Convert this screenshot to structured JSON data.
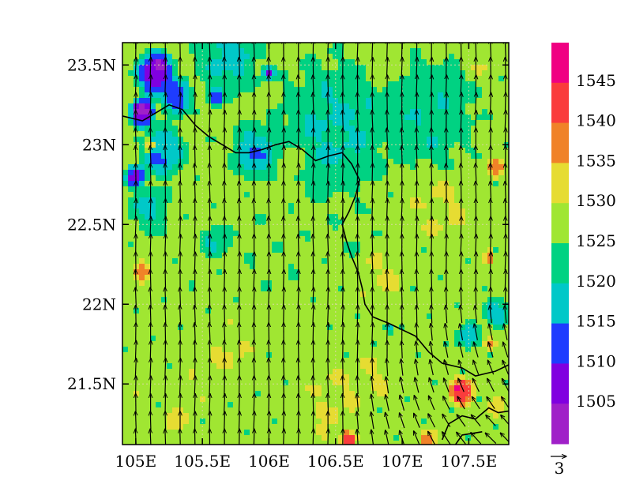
{
  "chart_data": {
    "type": "heatmap",
    "title": "",
    "xlabel": "",
    "ylabel": "",
    "x_range": [
      104.9,
      107.8
    ],
    "y_range": [
      21.12,
      23.64
    ],
    "x_ticks": [
      {
        "value": 105.0,
        "label": "105E"
      },
      {
        "value": 105.5,
        "label": "105.5E"
      },
      {
        "value": 106.0,
        "label": "106E"
      },
      {
        "value": 106.5,
        "label": "106.5E"
      },
      {
        "value": 107.0,
        "label": "107E"
      },
      {
        "value": 107.5,
        "label": "107.5E"
      }
    ],
    "y_ticks": [
      {
        "value": 21.5,
        "label": "21.5N"
      },
      {
        "value": 22.0,
        "label": "22N"
      },
      {
        "value": 22.5,
        "label": "22.5N"
      },
      {
        "value": 23.0,
        "label": "23N"
      },
      {
        "value": 23.5,
        "label": "23.5N"
      }
    ],
    "grid": true,
    "colorbar": {
      "position": "right",
      "levels": [
        {
          "label": "",
          "color": "#a020c8"
        },
        {
          "label": "1505",
          "color": "#8000e0"
        },
        {
          "label": "1510",
          "color": "#1e3cff"
        },
        {
          "label": "1515",
          "color": "#00c8c8"
        },
        {
          "label": "1520",
          "color": "#00d282"
        },
        {
          "label": "1525",
          "color": "#a0e632"
        },
        {
          "label": "1530",
          "color": "#e6dc32"
        },
        {
          "label": "1535",
          "color": "#f08228"
        },
        {
          "label": "1540",
          "color": "#fa3c3c"
        },
        {
          "label": "1545",
          "color": "#f00082"
        }
      ]
    },
    "field_regions": [
      {
        "lon": 105.15,
        "lat": 23.45,
        "value": 1505,
        "radius": 0.18
      },
      {
        "lon": 105.05,
        "lat": 23.2,
        "value": 1503,
        "radius": 0.12
      },
      {
        "lon": 105.3,
        "lat": 23.3,
        "value": 1512,
        "radius": 0.15
      },
      {
        "lon": 105.2,
        "lat": 22.95,
        "value": 1515,
        "radius": 0.2
      },
      {
        "lon": 105.0,
        "lat": 22.8,
        "value": 1510,
        "radius": 0.1
      },
      {
        "lon": 105.6,
        "lat": 23.3,
        "value": 1512,
        "radius": 0.08
      },
      {
        "lon": 106.0,
        "lat": 23.45,
        "value": 1510,
        "radius": 0.06
      },
      {
        "lon": 105.9,
        "lat": 22.95,
        "value": 1516,
        "radius": 0.22
      },
      {
        "lon": 106.5,
        "lat": 23.1,
        "value": 1520,
        "radius": 0.55
      },
      {
        "lon": 107.2,
        "lat": 23.2,
        "value": 1521,
        "radius": 0.45
      },
      {
        "lon": 105.7,
        "lat": 23.55,
        "value": 1519,
        "radius": 0.3
      },
      {
        "lon": 106.9,
        "lat": 23.55,
        "value": 1528,
        "radius": 0.2
      },
      {
        "lon": 107.6,
        "lat": 23.55,
        "value": 1529,
        "radius": 0.2
      },
      {
        "lon": 105.1,
        "lat": 22.6,
        "value": 1520,
        "radius": 0.2
      },
      {
        "lon": 105.6,
        "lat": 22.4,
        "value": 1520,
        "radius": 0.15
      },
      {
        "lon": 105.05,
        "lat": 22.2,
        "value": 1538,
        "radius": 0.09
      },
      {
        "lon": 105.1,
        "lat": 23.0,
        "value": 1535,
        "radius": 0.06
      },
      {
        "lon": 107.7,
        "lat": 22.85,
        "value": 1538,
        "radius": 0.08
      },
      {
        "lon": 106.2,
        "lat": 22.9,
        "value": 1530,
        "radius": 0.12
      },
      {
        "lon": 106.85,
        "lat": 22.2,
        "value": 1530,
        "radius": 0.25
      },
      {
        "lon": 107.3,
        "lat": 22.6,
        "value": 1530,
        "radius": 0.3
      },
      {
        "lon": 105.7,
        "lat": 21.7,
        "value": 1530,
        "radius": 0.25
      },
      {
        "lon": 105.4,
        "lat": 21.45,
        "value": 1529,
        "radius": 0.2
      },
      {
        "lon": 106.5,
        "lat": 21.4,
        "value": 1530,
        "radius": 0.3
      },
      {
        "lon": 105.0,
        "lat": 21.5,
        "value": 1529,
        "radius": 0.12
      },
      {
        "lon": 106.8,
        "lat": 21.55,
        "value": 1530,
        "radius": 0.18
      },
      {
        "lon": 107.5,
        "lat": 21.8,
        "value": 1518,
        "radius": 0.12
      },
      {
        "lon": 107.7,
        "lat": 21.95,
        "value": 1518,
        "radius": 0.12
      },
      {
        "lon": 107.65,
        "lat": 21.75,
        "value": 1536,
        "radius": 0.06
      },
      {
        "lon": 107.45,
        "lat": 21.45,
        "value": 1543,
        "radius": 0.12
      },
      {
        "lon": 107.7,
        "lat": 21.35,
        "value": 1532,
        "radius": 0.1
      },
      {
        "lon": 107.65,
        "lat": 22.3,
        "value": 1537,
        "radius": 0.06
      },
      {
        "lon": 106.9,
        "lat": 21.85,
        "value": 1518,
        "radius": 0.04
      },
      {
        "lon": 106.6,
        "lat": 21.15,
        "value": 1540,
        "radius": 0.08
      },
      {
        "lon": 107.2,
        "lat": 21.15,
        "value": 1537,
        "radius": 0.08
      },
      {
        "lon": 106.4,
        "lat": 21.2,
        "value": 1535,
        "radius": 0.07
      },
      {
        "lon": 105.3,
        "lat": 21.25,
        "value": 1532,
        "radius": 0.12
      },
      {
        "lon": 105.85,
        "lat": 21.25,
        "value": 1527,
        "radius": 0.2
      },
      {
        "lon": 106.05,
        "lat": 22.3,
        "value": 1526,
        "radius": 0.35
      },
      {
        "lon": 106.6,
        "lat": 22.45,
        "value": 1526,
        "radius": 0.3
      }
    ],
    "background_value": 1527,
    "wind_vectors": {
      "lon_start": 105.0,
      "lon_step": 0.111,
      "lat_start": 21.16,
      "lat_step": 0.111,
      "base": {
        "u": 0.0,
        "v": 3.1
      },
      "southeast_shear": {
        "u": -1.9,
        "v": 1.7,
        "centered_at": [
          107.7,
          21.2
        ]
      }
    },
    "reference_vector": {
      "label": "3"
    },
    "boundary_lines": [
      [
        [
          104.9,
          23.18
        ],
        [
          105.05,
          23.15
        ],
        [
          105.15,
          23.2
        ],
        [
          105.25,
          23.25
        ],
        [
          105.35,
          23.22
        ],
        [
          105.45,
          23.12
        ],
        [
          105.55,
          23.05
        ],
        [
          105.65,
          23.0
        ],
        [
          105.75,
          22.95
        ],
        [
          105.85,
          22.95
        ],
        [
          105.95,
          22.97
        ],
        [
          106.05,
          23.0
        ],
        [
          106.15,
          23.02
        ],
        [
          106.25,
          22.97
        ],
        [
          106.35,
          22.9
        ],
        [
          106.45,
          22.93
        ],
        [
          106.55,
          22.95
        ],
        [
          106.62,
          22.88
        ],
        [
          106.68,
          22.78
        ],
        [
          106.65,
          22.68
        ],
        [
          106.6,
          22.58
        ],
        [
          106.55,
          22.5
        ],
        [
          106.58,
          22.4
        ],
        [
          106.62,
          22.3
        ],
        [
          106.67,
          22.2
        ],
        [
          106.7,
          22.1
        ],
        [
          106.72,
          22.0
        ],
        [
          106.78,
          21.92
        ],
        [
          106.9,
          21.88
        ],
        [
          107.0,
          21.84
        ],
        [
          107.1,
          21.8
        ],
        [
          107.2,
          21.7
        ],
        [
          107.3,
          21.63
        ],
        [
          107.45,
          21.6
        ],
        [
          107.55,
          21.55
        ],
        [
          107.7,
          21.58
        ],
        [
          107.8,
          21.62
        ]
      ],
      [
        [
          107.3,
          21.15
        ],
        [
          107.35,
          21.25
        ],
        [
          107.45,
          21.3
        ],
        [
          107.55,
          21.28
        ],
        [
          107.65,
          21.35
        ],
        [
          107.72,
          21.32
        ],
        [
          107.8,
          21.33
        ]
      ],
      [
        [
          107.4,
          21.12
        ],
        [
          107.45,
          21.18
        ],
        [
          107.6,
          21.2
        ]
      ]
    ]
  }
}
